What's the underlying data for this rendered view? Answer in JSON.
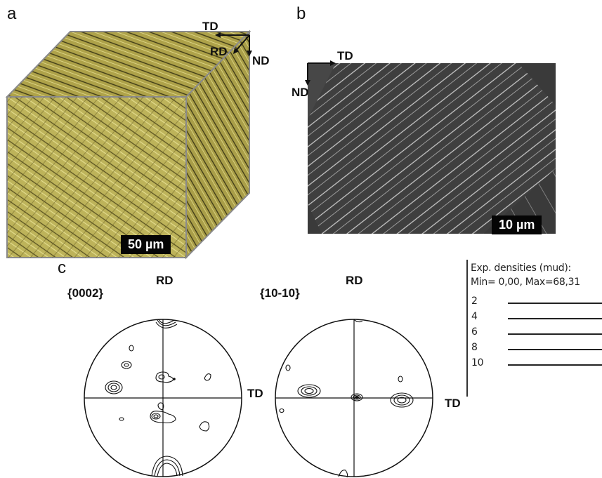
{
  "panels": {
    "a": {
      "letter": "a",
      "scale_bar": "50 µm",
      "axes": {
        "td": "TD",
        "rd": "RD",
        "nd": "ND"
      }
    },
    "b": {
      "letter": "b",
      "scale_bar": "10 µm",
      "axes": {
        "td": "TD",
        "nd": "ND"
      }
    },
    "c": {
      "letter": "c"
    }
  },
  "pole_figures": [
    {
      "plane": "{0002}",
      "top": "RD",
      "right": "TD"
    },
    {
      "plane": "{10-10}",
      "top": "RD",
      "right": "TD"
    }
  ],
  "legend": {
    "title": "Exp. densities (mud):",
    "range": "Min= 0,00, Max=68,31",
    "levels": [
      "2",
      "4",
      "6",
      "8",
      "10"
    ]
  },
  "colors": {
    "micrograph_a": "#b9ad52",
    "micrograph_b": "#3a3a3a",
    "frame": "#8a8a8a"
  }
}
